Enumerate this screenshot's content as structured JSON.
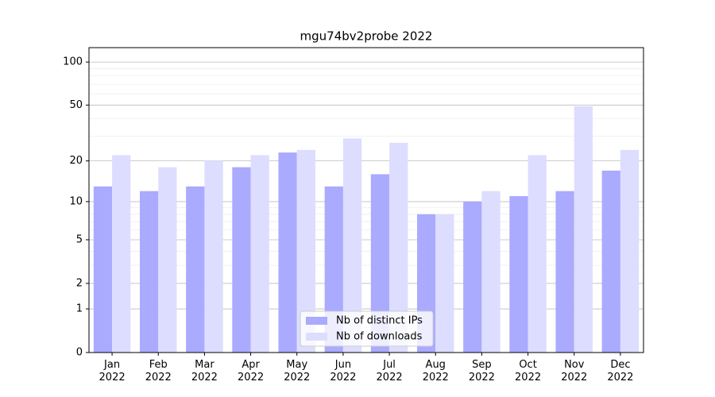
{
  "chart_data": {
    "type": "bar",
    "title": "mgu74bv2probe 2022",
    "scale": "log1p",
    "categories": [
      "Jan\n2022",
      "Feb\n2022",
      "Mar\n2022",
      "Apr\n2022",
      "May\n2022",
      "Jun\n2022",
      "Jul\n2022",
      "Aug\n2022",
      "Sep\n2022",
      "Oct\n2022",
      "Nov\n2022",
      "Dec\n2022"
    ],
    "series": [
      {
        "name": "Nb of distinct IPs",
        "color": "#aaaaff",
        "values": [
          13,
          12,
          13,
          18,
          23,
          13,
          16,
          8,
          10,
          11,
          12,
          17
        ]
      },
      {
        "name": "Nb of downloads",
        "color": "#ddddff",
        "values": [
          22,
          18,
          20,
          22,
          24,
          29,
          27,
          8,
          12,
          22,
          49,
          24
        ]
      }
    ],
    "ylim": [
      0,
      126
    ],
    "yticks": [
      0,
      1,
      2,
      5,
      10,
      20,
      50,
      100
    ],
    "minor_yticks": [
      3,
      4,
      6,
      7,
      8,
      9,
      30,
      40,
      60,
      70,
      80,
      90
    ],
    "grid": true,
    "legend": "bottom-center"
  }
}
